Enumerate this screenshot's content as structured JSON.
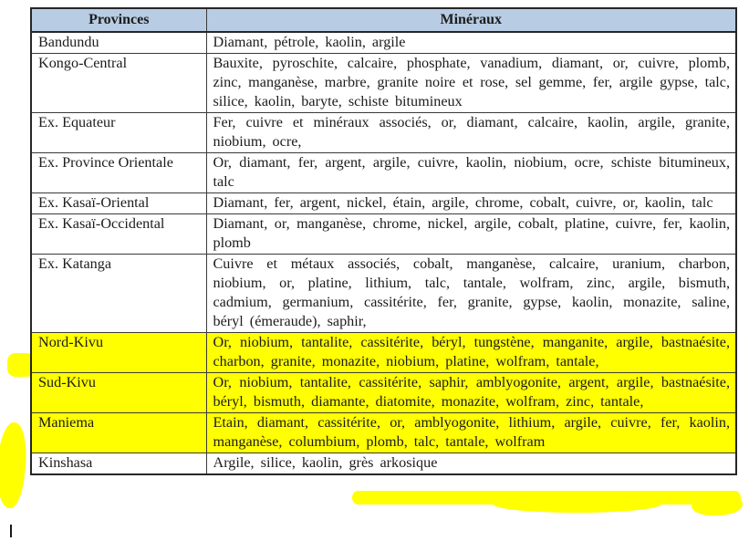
{
  "table": {
    "header_bg": "#b8cce4",
    "highlight_color": "#ffff00",
    "columns": [
      {
        "label": "Provinces"
      },
      {
        "label": "Minéraux"
      }
    ],
    "rows": [
      {
        "province": "Bandundu",
        "minerals": "Diamant, pétrole, kaolin, argile",
        "highlighted": false
      },
      {
        "province": "Kongo-Central",
        "minerals": "Bauxite, pyroschite, calcaire, phosphate, vanadium, diamant, or, cuivre, plomb, zinc, manganèse, marbre, granite noire et rose, sel gemme, fer, argile gypse, talc, silice, kaolin, baryte, schiste bitumineux",
        "highlighted": false
      },
      {
        "province": "Ex. Equateur",
        "minerals": "Fer, cuivre et minéraux associés, or, diamant, calcaire, kaolin, argile, granite, niobium, ocre,",
        "highlighted": false
      },
      {
        "province": "Ex. Province Orientale",
        "minerals": "Or, diamant, fer, argent, argile, cuivre, kaolin, niobium, ocre, schiste bitumineux, talc",
        "highlighted": false
      },
      {
        "province": "Ex. Kasaï-Oriental",
        "minerals": "Diamant, fer, argent, nickel, étain, argile, chrome, cobalt, cuivre, or, kaolin, talc",
        "highlighted": false
      },
      {
        "province": "Ex. Kasaï-Occidental",
        "minerals": "Diamant, or, manganèse, chrome, nickel, argile, cobalt, platine, cuivre, fer, kaolin, plomb",
        "highlighted": false
      },
      {
        "province": "Ex. Katanga",
        "minerals": "Cuivre et métaux associés, cobalt, manganèse, calcaire, uranium, charbon, niobium, or, platine, lithium, talc, tantale, wolfram, zinc, argile, bismuth, cadmium, germanium, cassitérite, fer, granite, gypse, kaolin, monazite, saline, béryl (émeraude), saphir,",
        "highlighted": false
      },
      {
        "province": "Nord-Kivu",
        "minerals": "Or, niobium, tantalite, cassitérite, béryl, tungstène, manganite, argile, bastnaésite, charbon, granite, monazite, niobium, platine, wolfram, tantale,",
        "highlighted": true
      },
      {
        "province": "Sud-Kivu",
        "minerals": "Or, niobium, tantalite, cassitérite, saphir, amblyogonite, argent, argile, bastnaésite, béryl, bismuth, diamante, diatomite, monazite, wolfram, zinc, tantale,",
        "highlighted": true
      },
      {
        "province": "Maniema",
        "minerals": "Etain, diamant, cassitérite, or, amblyogonite, lithium, argile, cuivre, fer, kaolin, manganèse, columbium, plomb, talc, tantale, wolfram",
        "highlighted": true
      },
      {
        "province": "Kinshasa",
        "minerals": "Argile, silice, kaolin, grès arkosique",
        "highlighted": false
      }
    ]
  }
}
